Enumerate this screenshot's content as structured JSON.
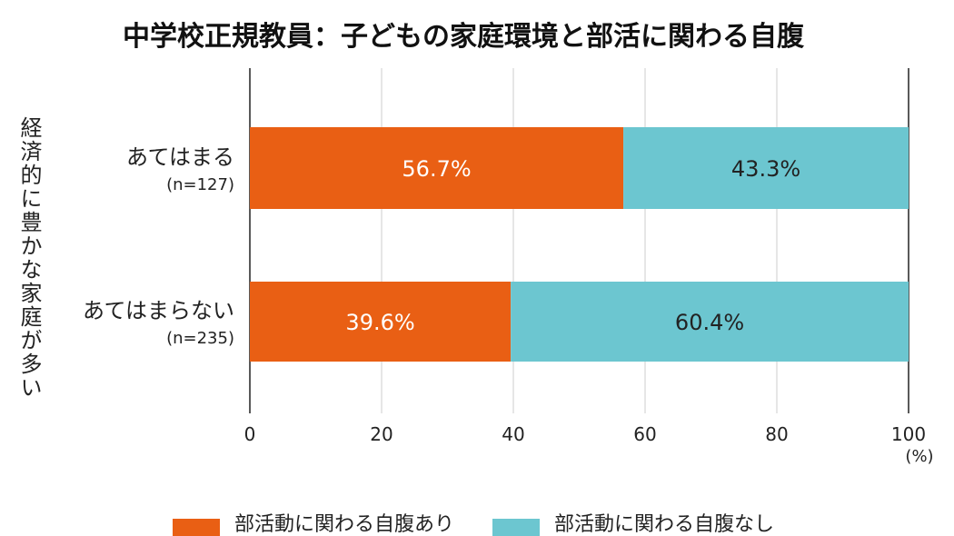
{
  "chart_data": {
    "type": "bar",
    "orientation": "horizontal",
    "stacked": true,
    "title": "中学校正規教員：子どもの家庭環境と部活に関わる自腹",
    "ylabel": "経済的に豊かな家庭が多い",
    "xunit": "(%)",
    "xlim": [
      0,
      100
    ],
    "xticks": [
      "0",
      "20",
      "40",
      "60",
      "80",
      "100"
    ],
    "grid": true,
    "legend_placement": "bottom",
    "categories": [
      {
        "label": "あてはまる",
        "n": "(n=127)"
      },
      {
        "label": "あてはまらない",
        "n": "(n=235)"
      }
    ],
    "series": [
      {
        "name": "部活動に関わる自腹あり",
        "color": "#e95f14",
        "values": [
          56.7,
          39.6
        ],
        "labels": [
          "56.7%",
          "39.6%"
        ]
      },
      {
        "name": "部活動に関わる自腹なし",
        "color": "#6cc6d0",
        "values": [
          43.3,
          60.4
        ],
        "labels": [
          "43.3%",
          "60.4%"
        ]
      }
    ]
  }
}
